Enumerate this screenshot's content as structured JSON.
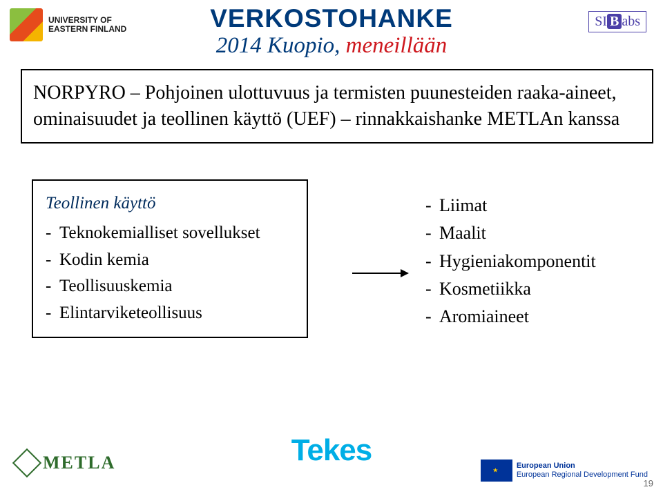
{
  "logos": {
    "uef": {
      "line1": "UNIVERSITY OF",
      "line2": "EASTERN FINLAND"
    },
    "siblabs": {
      "pre": "SI",
      "b": "B",
      "post": "abs"
    },
    "metla": "METLA",
    "tekes": "Tekes",
    "erdf": {
      "line1": "European Union",
      "line2": "European Regional Development Fund"
    }
  },
  "title": {
    "main": "VERKOSTOHANKE",
    "sub_prefix": "2014 Kuopio, ",
    "sub_highlight": "meneillään"
  },
  "main_box": "NORPYRO – Pohjoinen ulottuvuus ja termisten puunesteiden raaka-aineet, ominaisuudet ja teollinen käyttö (UEF) – rinnakkaishanke METLAn kanssa",
  "left_box": {
    "heading": "Teollinen käyttö",
    "items": [
      "Teknokemialliset sovellukset",
      "Kodin kemia",
      "Teollisuuskemia",
      "Elintarviketeollisuus"
    ]
  },
  "right_list": [
    "Liimat",
    "Maalit",
    "Hygieniakomponentit",
    "Kosmetiikka",
    "Aromiaineet"
  ],
  "page_number": "19"
}
